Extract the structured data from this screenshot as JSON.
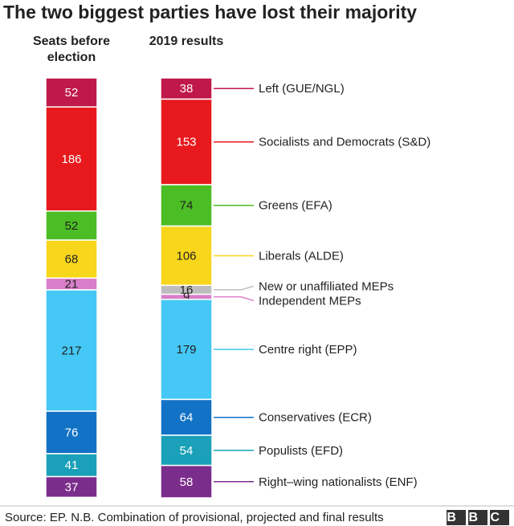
{
  "chart_data": {
    "type": "stacked_bar",
    "title": "The two biggest parties have lost their majority",
    "categories": [
      "Seats before election",
      "2019 results"
    ],
    "series": [
      {
        "name": "Left (GUE/NGL)",
        "color": "#c0184a",
        "values": [
          52,
          38
        ]
      },
      {
        "name": "Socialists and Democrats (S&D)",
        "color": "#e8191c",
        "values": [
          186,
          153
        ]
      },
      {
        "name": "Greens (EFA)",
        "color": "#4cbd25",
        "values": [
          52,
          74
        ]
      },
      {
        "name": "Liberals (ALDE)",
        "color": "#f7d61c",
        "values": [
          68,
          106
        ]
      },
      {
        "name": "New or unaffiliated MEPs",
        "color": "#bdbdbd",
        "values": [
          null,
          16
        ]
      },
      {
        "name": "Independent MEPs",
        "color": "#d97ec9",
        "values": [
          21,
          9
        ]
      },
      {
        "name": "Centre right (EPP)",
        "color": "#45c8f5",
        "values": [
          217,
          179
        ]
      },
      {
        "name": "Conservatives (ECR)",
        "color": "#1272c5",
        "values": [
          76,
          64
        ]
      },
      {
        "name": "Populists (EFD)",
        "color": "#1aa0b8",
        "values": [
          41,
          54
        ]
      },
      {
        "name": "Right–wing nationalists (ENF)",
        "color": "#7b2d8c",
        "values": [
          37,
          58
        ]
      }
    ],
    "source": "Source: EP. N.B. Combination of provisional, projected and final results",
    "logo": "BBC"
  }
}
